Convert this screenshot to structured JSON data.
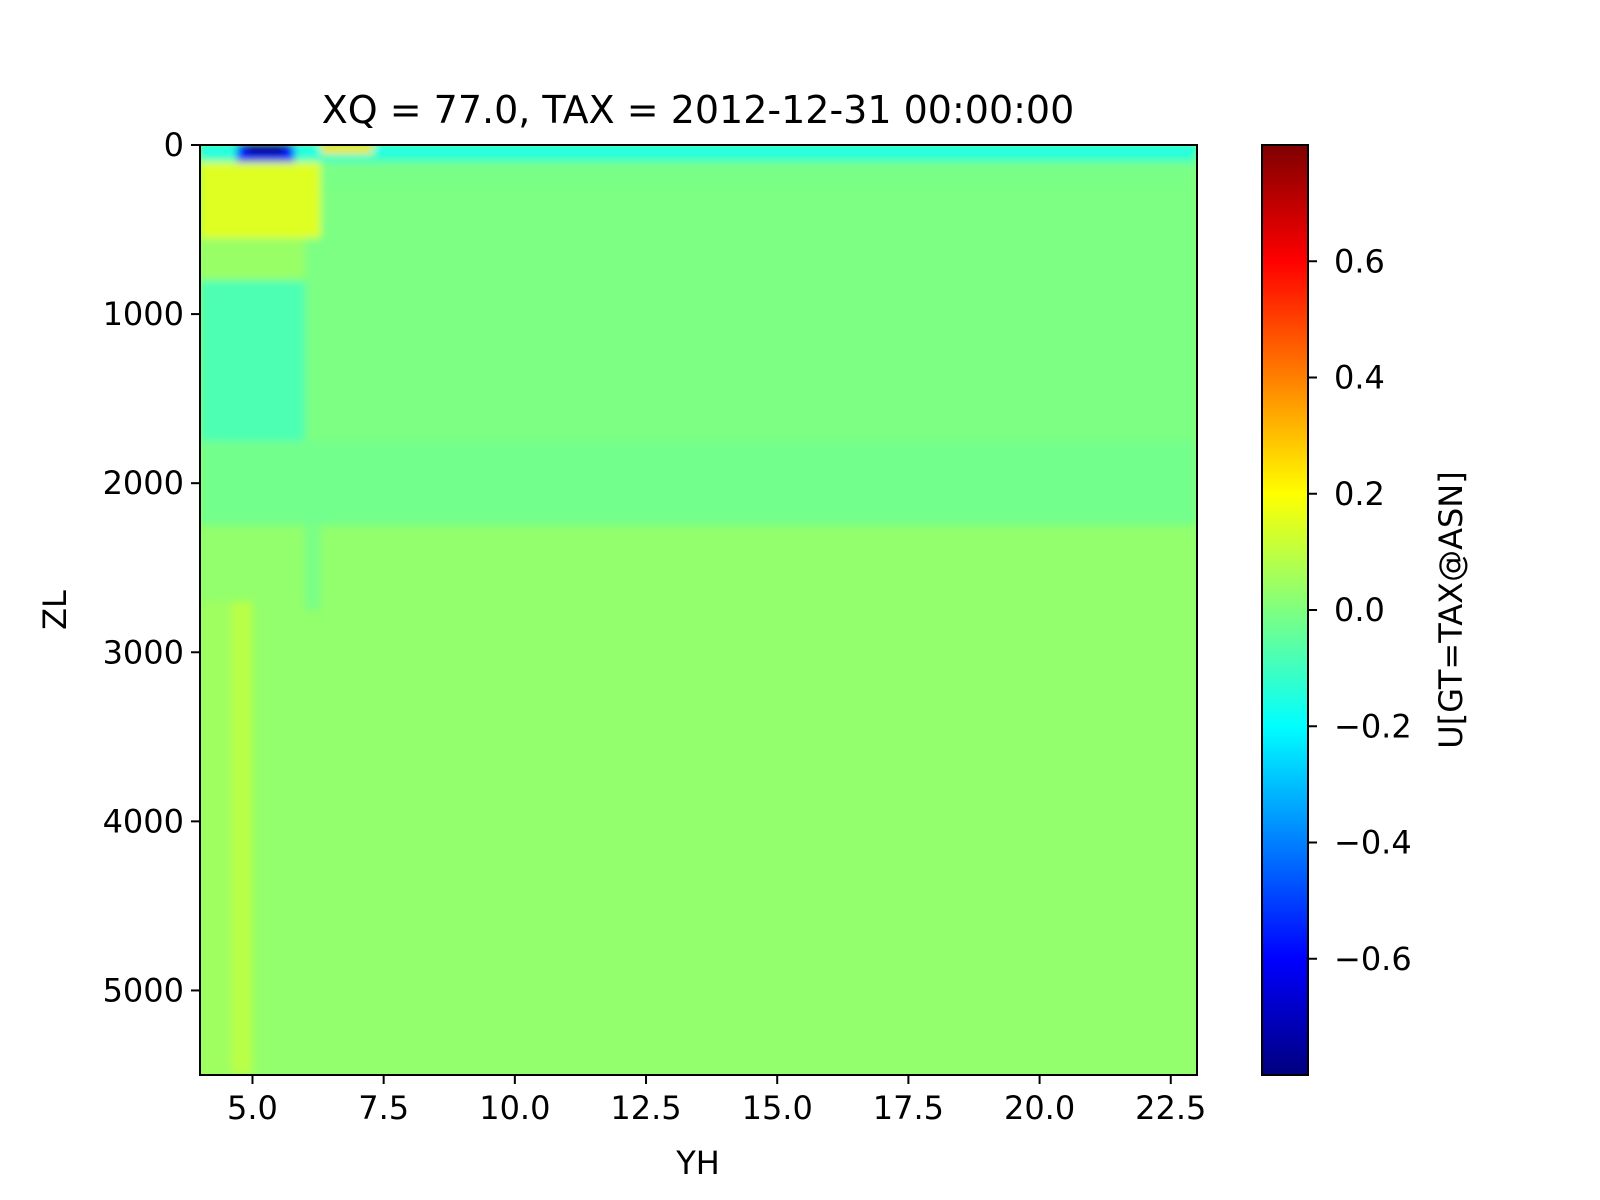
{
  "chart_data": {
    "type": "heatmap",
    "title": "XQ = 77.0, TAX = 2012-12-31 00:00:00",
    "xlabel": "YH",
    "ylabel": "ZL",
    "colorbar_label": "U[GT=TAX@ASN]",
    "colormap": "jet",
    "xlim": [
      4.0,
      23.0
    ],
    "ylim": [
      5500,
      0
    ],
    "y_inverted": true,
    "x_ticks": [
      "5.0",
      "7.5",
      "10.0",
      "12.5",
      "15.0",
      "17.5",
      "20.0",
      "22.5"
    ],
    "y_ticks": [
      "0",
      "1000",
      "2000",
      "3000",
      "4000",
      "5000"
    ],
    "colorbar_range": [
      -0.8,
      0.8
    ],
    "colorbar_ticks": [
      "0.6",
      "0.4",
      "0.2",
      "0.0",
      "−0.2",
      "−0.4",
      "−0.6"
    ],
    "background_value": 0.03,
    "regions": [
      {
        "x": [
          4.0,
          23.0
        ],
        "y": [
          0,
          40
        ],
        "value": -0.2
      },
      {
        "x": [
          4.0,
          23.0
        ],
        "y": [
          40,
          100
        ],
        "value": -0.12
      },
      {
        "x": [
          4.0,
          23.0
        ],
        "y": [
          100,
          250
        ],
        "value": -0.01
      },
      {
        "x": [
          4.0,
          23.0
        ],
        "y": [
          250,
          1750
        ],
        "value": -0.005
      },
      {
        "x": [
          4.0,
          23.0
        ],
        "y": [
          1750,
          2250
        ],
        "value": -0.02
      },
      {
        "x": [
          4.0,
          6.3
        ],
        "y": [
          100,
          550
        ],
        "value": 0.15
      },
      {
        "x": [
          4.0,
          6.0
        ],
        "y": [
          550,
          800
        ],
        "value": 0.04
      },
      {
        "x": [
          4.0,
          6.0
        ],
        "y": [
          800,
          1750
        ],
        "value": -0.08
      },
      {
        "x": [
          6.0,
          6.3
        ],
        "y": [
          2250,
          2750
        ],
        "value": -0.01
      },
      {
        "x": [
          4.6,
          5.0
        ],
        "y": [
          2700,
          5500
        ],
        "value": 0.09
      },
      {
        "x": [
          4.0,
          4.6
        ],
        "y": [
          2700,
          5500
        ],
        "value": 0.05
      },
      {
        "x": [
          4.7,
          5.8
        ],
        "y": [
          0,
          100
        ],
        "value": -0.55
      },
      {
        "x": [
          4.9,
          5.6
        ],
        "y": [
          0,
          60
        ],
        "value": -0.75
      },
      {
        "x": [
          6.3,
          7.3
        ],
        "y": [
          0,
          50
        ],
        "value": 0.25
      }
    ]
  }
}
